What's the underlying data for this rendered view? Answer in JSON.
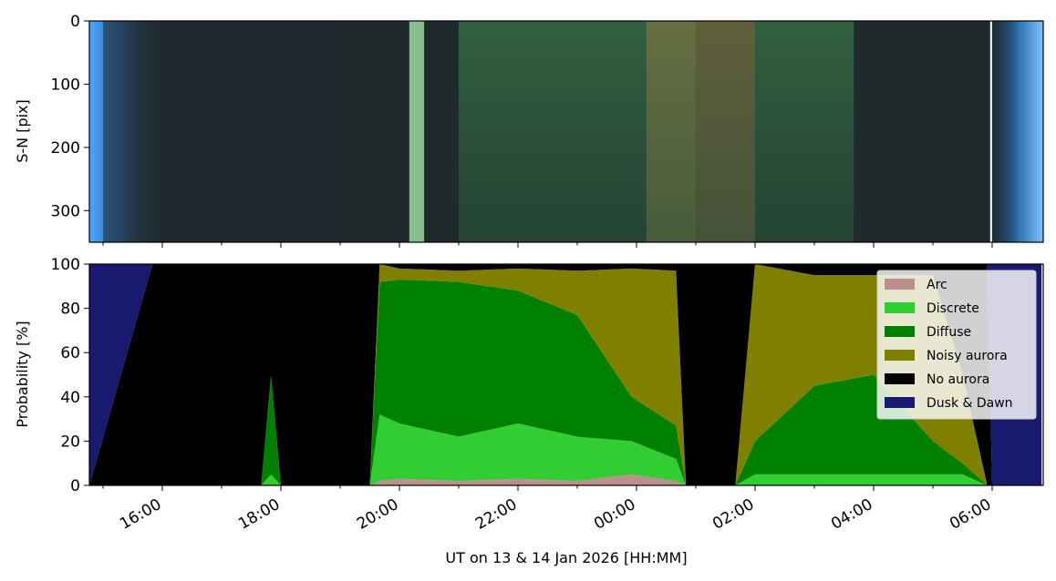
{
  "chart_data": [
    {
      "type": "heatmap",
      "title": "",
      "ylabel": "S-N [pix]",
      "ylim": [
        350,
        0
      ],
      "yticks": [
        "0",
        "100",
        "200",
        "300"
      ],
      "description_note": "",
      "bands": [
        {
          "start": "15:00",
          "end": "19:00",
          "tone": "dark"
        },
        {
          "start": "20:10",
          "end": "20:25",
          "tone": "bright-green"
        },
        {
          "start": "21:00",
          "end": "01:00",
          "tone": "green"
        },
        {
          "start": "00:10",
          "end": "02:00",
          "tone": "olive"
        },
        {
          "start": "02:00",
          "end": "03:40",
          "tone": "green"
        },
        {
          "start": "05:58",
          "end": "05:59",
          "tone": "white-line"
        }
      ]
    },
    {
      "type": "area",
      "title": "",
      "xlabel": "UT on 13 & 14 Jan 2026 [HH:MM]",
      "ylabel": "Probability [%]",
      "ylim": [
        0,
        100
      ],
      "yticks": [
        "0",
        "20",
        "40",
        "60",
        "80",
        "100"
      ],
      "xticks": [
        "16:00",
        "18:00",
        "20:00",
        "22:00",
        "00:00",
        "02:00",
        "04:00",
        "06:00"
      ],
      "legend_position": "upper-right",
      "x": [
        "14:45",
        "15:50",
        "16:00",
        "17:40",
        "17:50",
        "18:00",
        "19:30",
        "19:40",
        "20:00",
        "21:00",
        "22:00",
        "23:00",
        "23:55",
        "00:40",
        "00:50",
        "01:30",
        "01:40",
        "02:00",
        "03:00",
        "04:00",
        "05:00",
        "05:30",
        "05:55",
        "06:00",
        "06:50"
      ],
      "series": [
        {
          "name": "Arc",
          "color": "#bc8f8f",
          "values": [
            0,
            0,
            0,
            0,
            0,
            0,
            0,
            2,
            3,
            2,
            3,
            2,
            5,
            2,
            0,
            0,
            0,
            0,
            0,
            0,
            0,
            0,
            0,
            0,
            0
          ]
        },
        {
          "name": "Discrete",
          "color": "#32cd32",
          "values": [
            0,
            0,
            0,
            0,
            5,
            0,
            0,
            30,
            25,
            20,
            25,
            20,
            15,
            10,
            0,
            0,
            0,
            5,
            5,
            5,
            5,
            5,
            0,
            0,
            0
          ]
        },
        {
          "name": "Diffuse",
          "color": "#008000",
          "values": [
            0,
            0,
            0,
            0,
            45,
            0,
            0,
            60,
            65,
            70,
            60,
            55,
            20,
            15,
            0,
            0,
            0,
            15,
            40,
            45,
            15,
            5,
            0,
            0,
            0
          ]
        },
        {
          "name": "Noisy aurora",
          "color": "#808000",
          "values": [
            0,
            0,
            0,
            0,
            0,
            0,
            0,
            8,
            5,
            5,
            10,
            20,
            58,
            70,
            0,
            0,
            0,
            80,
            50,
            45,
            75,
            40,
            0,
            0,
            0
          ]
        },
        {
          "name": "No aurora",
          "color": "#000000",
          "values": [
            0,
            100,
            100,
            100,
            50,
            100,
            100,
            0,
            2,
            3,
            2,
            3,
            2,
            3,
            100,
            100,
            100,
            0,
            5,
            5,
            5,
            50,
            100,
            0,
            0
          ]
        },
        {
          "name": "Dusk & Dawn",
          "color": "#191970",
          "values": [
            100,
            0,
            0,
            0,
            0,
            0,
            0,
            0,
            0,
            0,
            0,
            0,
            0,
            0,
            0,
            0,
            0,
            0,
            0,
            0,
            0,
            0,
            0,
            100,
            100
          ]
        }
      ]
    }
  ]
}
